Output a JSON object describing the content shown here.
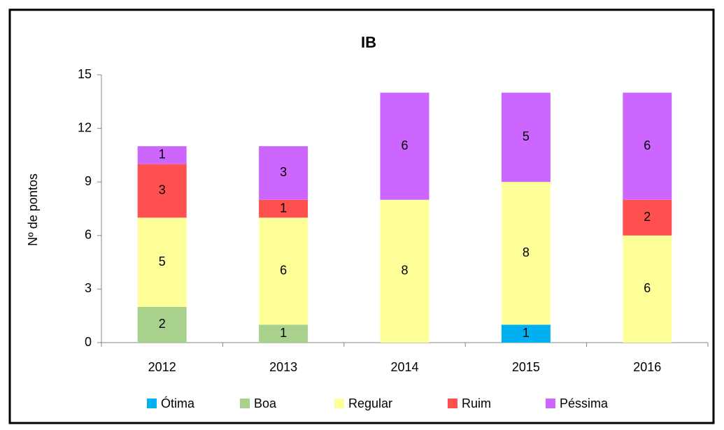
{
  "chart_data": {
    "type": "stacked_bar",
    "title": "IB",
    "y_label": "Nº de pontos",
    "categories": [
      "2012",
      "2013",
      "2014",
      "2015",
      "2016"
    ],
    "series": [
      {
        "name": "Ótima",
        "color": "#00b0f0",
        "values": [
          0,
          0,
          0,
          1,
          0
        ]
      },
      {
        "name": "Boa",
        "color": "#a9d18e",
        "values": [
          2,
          1,
          0,
          0,
          0
        ]
      },
      {
        "name": "Regular",
        "color": "#ffff99",
        "values": [
          5,
          6,
          8,
          8,
          6
        ]
      },
      {
        "name": "Ruim",
        "color": "#ff5050",
        "values": [
          3,
          1,
          0,
          0,
          2
        ]
      },
      {
        "name": "Péssima",
        "color": "#cc66ff",
        "values": [
          1,
          3,
          6,
          5,
          6
        ]
      }
    ],
    "ylim": [
      0,
      15
    ],
    "yticks": [
      0,
      3,
      6,
      9,
      12,
      15
    ],
    "grid": false,
    "legend": "bottom"
  }
}
